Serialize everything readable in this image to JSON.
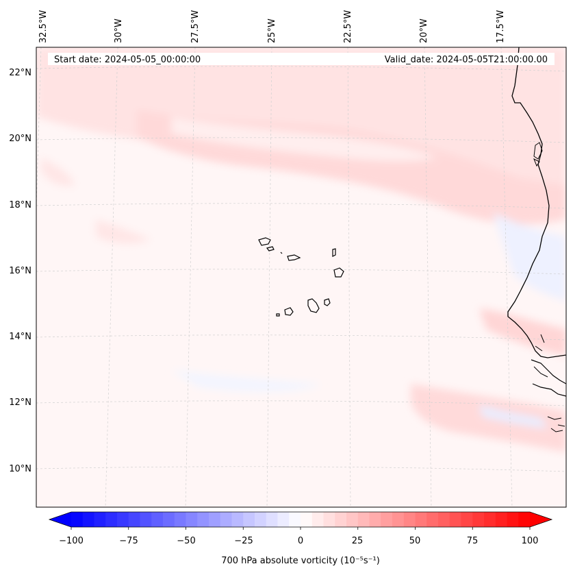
{
  "map": {
    "start_date": "Start date: 2024-05-05_00:00:00",
    "valid_date": "Valid_date: 2024-05-05T21:00:00.00",
    "lon_labels": [
      "32.5°W",
      "30°W",
      "27.5°W",
      "25°W",
      "22.5°W",
      "20°W",
      "17.5°W"
    ],
    "lat_labels": [
      "22°N",
      "20°N",
      "18°N",
      "16°N",
      "14°N",
      "12°N",
      "10°N"
    ]
  },
  "colorbar": {
    "ticks": [
      "−100",
      "−75",
      "−50",
      "−25",
      "0",
      "25",
      "50",
      "75",
      "100"
    ],
    "label": "700 hPa absolute vorticity (10⁻⁵s⁻¹)"
  },
  "colors": {
    "negative": "#0000ff",
    "positive": "#ff0000",
    "neutral": "#ffffff",
    "coastline": "#000000",
    "gridline": "#cccccc"
  }
}
